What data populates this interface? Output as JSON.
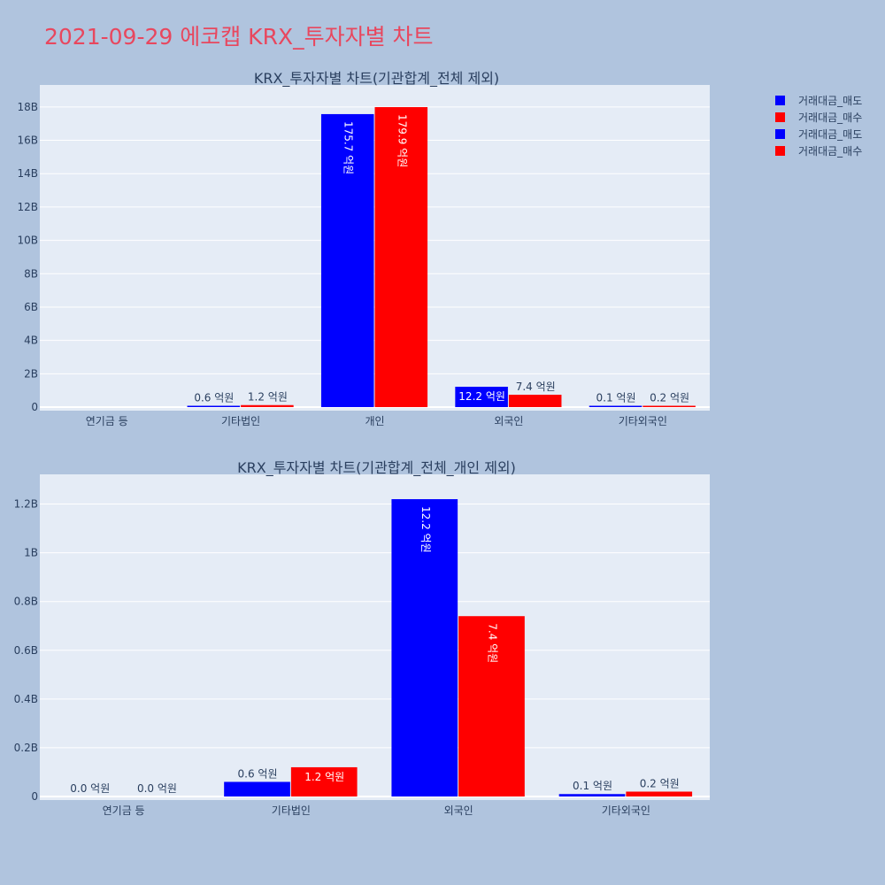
{
  "title": "2021-09-29 에코캡 KRX_투자자별 차트",
  "legend": [
    {
      "label": "거래대금_매도",
      "color": "#0000ff"
    },
    {
      "label": "거래대금_매수",
      "color": "#ff0000"
    },
    {
      "label": "거래대금_매도",
      "color": "#0000ff"
    },
    {
      "label": "거래대금_매수",
      "color": "#ff0000"
    }
  ],
  "colors": {
    "sell": "#0000ff",
    "buy": "#ff0000",
    "plot_bg": "#e5ecf6",
    "page_bg": "#b0c4de",
    "title": "#e8475e"
  },
  "chart_data": [
    {
      "type": "bar",
      "title": "KRX_투자자별 차트(기관합계_전체 제외)",
      "categories": [
        "연기금 등",
        "기타법인",
        "개인",
        "외국인",
        "기타외국인"
      ],
      "series": [
        {
          "name": "거래대금_매도",
          "values": [
            0,
            60000000,
            17570000000,
            1220000000,
            10000000
          ],
          "labels": [
            "",
            "0.6 억원",
            "175.7 억원",
            "12.2 억원",
            "0.1 억원"
          ]
        },
        {
          "name": "거래대금_매수",
          "values": [
            0,
            120000000,
            17990000000,
            740000000,
            20000000
          ],
          "labels": [
            "",
            "1.2 억원",
            "179.9 억원",
            "7.4 억원",
            "0.2 억원"
          ]
        }
      ],
      "ylim": [
        0,
        19000000000
      ],
      "yticks": [
        0,
        2000000000,
        4000000000,
        6000000000,
        8000000000,
        10000000000,
        12000000000,
        14000000000,
        16000000000,
        18000000000
      ],
      "yticklabels": [
        "0",
        "2B",
        "4B",
        "6B",
        "8B",
        "10B",
        "12B",
        "14B",
        "16B",
        "18B"
      ],
      "grid": true
    },
    {
      "type": "bar",
      "title": "KRX_투자자별 차트(기관합계_전체_개인 제외)",
      "categories": [
        "연기금 등",
        "기타법인",
        "외국인",
        "기타외국인"
      ],
      "series": [
        {
          "name": "거래대금_매도",
          "values": [
            0,
            60000000,
            1220000000,
            10000000
          ],
          "labels": [
            "0.0 억원",
            "0.6 억원",
            "12.2 억원",
            "0.1 억원"
          ]
        },
        {
          "name": "거래대금_매수",
          "values": [
            0,
            120000000,
            740000000,
            20000000
          ],
          "labels": [
            "0.0 억원",
            "1.2 억원",
            "7.4 억원",
            "0.2 억원"
          ]
        }
      ],
      "ylim": [
        0,
        1300000000
      ],
      "yticks": [
        0,
        200000000,
        400000000,
        600000000,
        800000000,
        1000000000,
        1200000000
      ],
      "yticklabels": [
        "0",
        "0.2B",
        "0.4B",
        "0.6B",
        "0.8B",
        "1B",
        "1.2B"
      ],
      "grid": true
    }
  ]
}
